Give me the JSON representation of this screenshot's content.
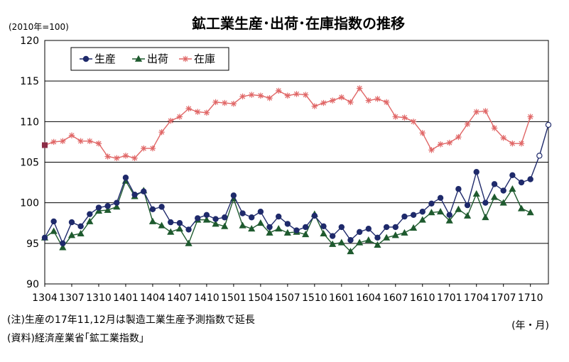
{
  "chart_data": {
    "type": "line",
    "title": "鉱工業生産･出荷･在庫指数の推移",
    "y_unit_label": "(2010年=100)",
    "x_unit_label": "(年・月)",
    "ylim": [
      90,
      120
    ],
    "yticks": [
      "90",
      "95",
      "100",
      "105",
      "110",
      "115",
      "120"
    ],
    "x_tick_labels": [
      "1304",
      "1307",
      "1310",
      "1401",
      "1404",
      "1407",
      "1410",
      "1501",
      "1504",
      "1507",
      "1510",
      "1601",
      "1604",
      "1607",
      "1610",
      "1701",
      "1704",
      "1707",
      "1710"
    ],
    "grid": true,
    "legend_position": "top-left",
    "series": [
      {
        "name": "生産",
        "color": "#1f2a6b",
        "marker": "circle",
        "values": [
          95.7,
          97.7,
          95.0,
          97.6,
          97.1,
          98.6,
          99.4,
          99.6,
          100.0,
          103.1,
          101.0,
          101.4,
          99.2,
          99.5,
          97.6,
          97.5,
          96.7,
          98.1,
          98.5,
          98.0,
          98.2,
          100.9,
          98.7,
          98.2,
          98.9,
          97.0,
          98.3,
          97.4,
          96.6,
          97.0,
          98.4,
          97.1,
          95.9,
          97.0,
          95.4,
          96.4,
          96.8,
          95.7,
          97.0,
          97.0,
          98.3,
          98.5,
          98.9,
          99.9,
          100.6,
          98.5,
          101.7,
          99.7,
          103.8,
          100.0,
          102.3,
          101.5,
          103.4,
          102.5,
          102.9,
          105.8,
          109.6
        ],
        "forecast_from_index": 55
      },
      {
        "name": "出荷",
        "color": "#1e5a2e",
        "marker": "triangle",
        "values": [
          95.7,
          96.5,
          94.5,
          96.0,
          96.2,
          97.7,
          99.0,
          99.1,
          99.5,
          102.7,
          100.8,
          101.5,
          97.7,
          97.2,
          96.4,
          96.8,
          95.0,
          97.9,
          97.9,
          97.4,
          97.1,
          100.5,
          97.2,
          96.8,
          97.5,
          96.3,
          96.8,
          96.3,
          96.4,
          96.1,
          98.6,
          96.2,
          94.9,
          95.1,
          94.0,
          95.1,
          95.4,
          94.8,
          95.7,
          96.0,
          96.3,
          96.9,
          97.9,
          98.8,
          98.9,
          97.8,
          99.2,
          98.4,
          101.1,
          98.2,
          100.7,
          100.0,
          101.7,
          99.3,
          98.8
        ],
        "forecast_from_index": null
      },
      {
        "name": "在庫",
        "color": "#e06666",
        "marker": "asterisk",
        "values": [
          107.1,
          107.5,
          107.6,
          108.3,
          107.6,
          107.6,
          107.3,
          105.7,
          105.5,
          105.8,
          105.5,
          106.7,
          106.7,
          108.7,
          110.1,
          110.6,
          111.6,
          111.2,
          111.1,
          112.4,
          112.3,
          112.2,
          113.1,
          113.3,
          113.2,
          112.9,
          113.8,
          113.2,
          113.4,
          113.3,
          111.9,
          112.3,
          112.6,
          113.0,
          112.4,
          114.1,
          112.6,
          112.8,
          112.4,
          110.6,
          110.5,
          110.0,
          108.6,
          106.5,
          107.2,
          107.4,
          108.1,
          109.7,
          111.2,
          111.3,
          109.2,
          108.0,
          107.3,
          107.3,
          110.6
        ],
        "forecast_from_index": null
      }
    ]
  },
  "notes": [
    "(注)生産の17年11,12月は製造工業生産予測指数で延長",
    "(資料)経済産業省｢鉱工業指数｣"
  ]
}
